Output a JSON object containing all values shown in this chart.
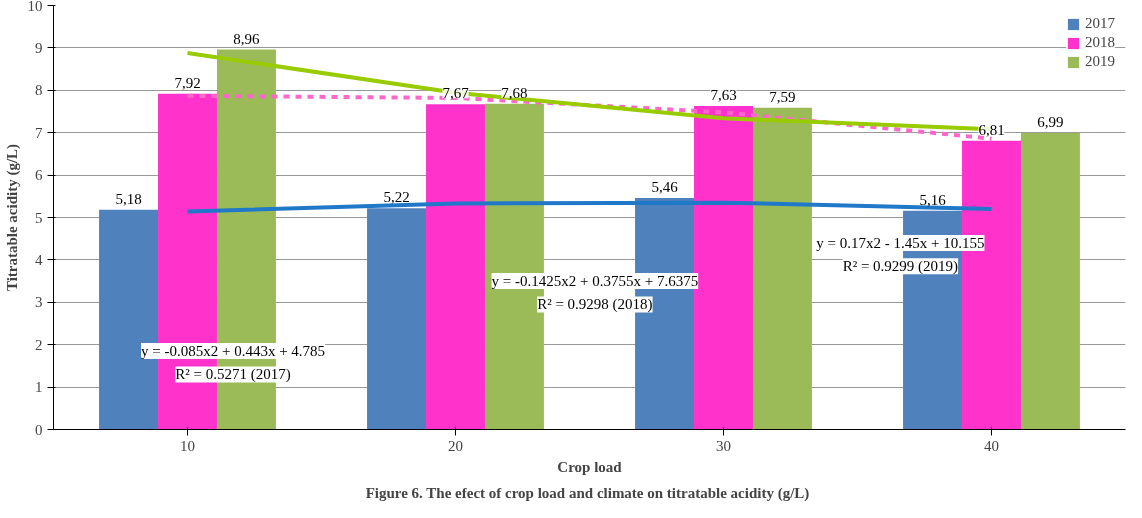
{
  "chart_data": {
    "type": "bar",
    "title": "Figure 6.  The efect of crop load and climate on titratable acidity (g/L)",
    "xlabel": "Crop load",
    "ylabel": "Titratable acidity (g/L)",
    "categories": [
      "10",
      "20",
      "30",
      "40"
    ],
    "series": [
      {
        "name": "2017",
        "color": "#4f81bd",
        "values": [
          5.18,
          5.22,
          5.46,
          5.16
        ],
        "value_labels": [
          "5,18",
          "5,22",
          "5,46",
          "5,16"
        ]
      },
      {
        "name": "2018",
        "color": "#ff33cc",
        "values": [
          7.92,
          7.67,
          7.63,
          6.81
        ],
        "value_labels": [
          "7,92",
          "7,67",
          "7,63",
          "6,81"
        ]
      },
      {
        "name": "2019",
        "color": "#9bbb59",
        "values": [
          8.96,
          7.68,
          7.59,
          6.99
        ],
        "value_labels": [
          "8,96",
          "7,68",
          "7,59",
          "6,99"
        ]
      },
      {
        "type": "line",
        "color": "#1f78c8",
        "x": [
          "10",
          "20",
          "30",
          "40"
        ],
        "values": [
          5.14,
          5.33,
          5.35,
          5.2
        ]
      },
      {
        "type": "line",
        "color": "#ff66cc",
        "line_style": "dashed",
        "x": [
          "10",
          "20",
          "30",
          "40"
        ],
        "values": [
          7.87,
          7.82,
          7.48,
          6.86
        ]
      },
      {
        "type": "line",
        "color": "#99cc00",
        "x": [
          "10",
          "20",
          "30",
          "40"
        ],
        "values": [
          8.88,
          7.94,
          7.34,
          7.08
        ]
      }
    ],
    "ylim": [
      0,
      10
    ],
    "yticks": [
      0,
      1,
      2,
      3,
      4,
      5,
      6,
      7,
      8,
      9,
      10
    ],
    "grid": "y",
    "legend": "top right",
    "annotations": [
      "y = -0.085x2 + 0.443x + 4.785",
      "R² = 0.5271 (2017)",
      "y = -0.1425x2 + 0.3755x + 7.6375",
      "R² = 0.9298 (2018)",
      "y = 0.17x2 - 1.45x + 10.155",
      "R² = 0.9299 (2019)"
    ]
  }
}
